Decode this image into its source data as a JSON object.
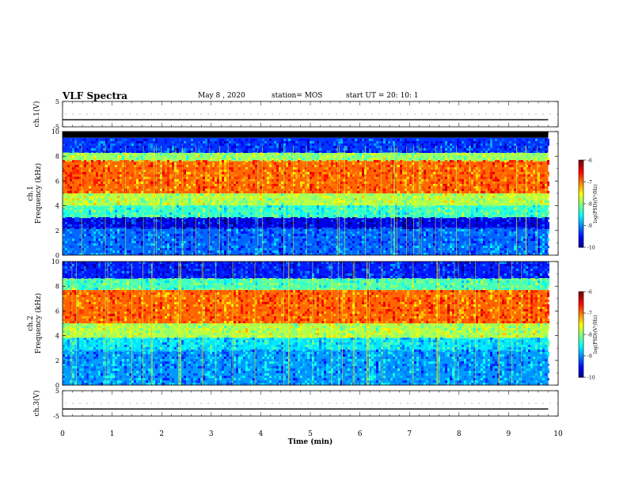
{
  "header": {
    "title": "VLF Spectra",
    "date": "May 8 , 2020",
    "station": "station= MOS",
    "start_ut": "start UT = 20: 10: 1"
  },
  "chart_data": [
    {
      "type": "line",
      "panel": "ch1-waveform",
      "ylabel": "ch.1(V)",
      "ylim": [
        -5,
        5
      ],
      "yticks": [
        5,
        -5
      ],
      "xlim": [
        0,
        10
      ],
      "series": [
        {
          "x": [
            0,
            9.8
          ],
          "y": [
            -2.2,
            -2.2
          ]
        }
      ]
    },
    {
      "type": "heatmap",
      "panel": "ch1-spectrogram",
      "ylabel": "ch.1\nFrequency (kHz)",
      "xlim": [
        0,
        10
      ],
      "ylim": [
        0,
        10
      ],
      "yticks": [
        0,
        2,
        4,
        6,
        8,
        10
      ],
      "data_x_extent": [
        0,
        9.8
      ],
      "colorbar": {
        "label": "log(PSD)(V²/Hz)",
        "range": [
          -10,
          -6
        ],
        "ticks": [
          -6,
          -7,
          -8,
          -9,
          -10
        ]
      },
      "bands": [
        {
          "f_from": 9.5,
          "f_to": 10,
          "level": -10.5
        },
        {
          "f_from": 8.3,
          "f_to": 9.5,
          "level": -9.3
        },
        {
          "f_from": 7.6,
          "f_to": 8.3,
          "level": -7.9
        },
        {
          "f_from": 5.0,
          "f_to": 7.6,
          "level": -6.9
        },
        {
          "f_from": 4.0,
          "f_to": 5.0,
          "level": -7.8
        },
        {
          "f_from": 3.0,
          "f_to": 4.0,
          "level": -8.3
        },
        {
          "f_from": 2.2,
          "f_to": 3.0,
          "level": -9.6
        },
        {
          "f_from": 0,
          "f_to": 2.2,
          "level": -9.1
        }
      ]
    },
    {
      "type": "heatmap",
      "panel": "ch2-spectrogram",
      "ylabel": "ch.2\nFrequency (kHz)",
      "xlim": [
        0,
        10
      ],
      "ylim": [
        0,
        10
      ],
      "yticks": [
        0,
        2,
        4,
        6,
        8,
        10
      ],
      "data_x_extent": [
        0,
        9.8
      ],
      "colorbar": {
        "label": "log(PSD)(V²/Hz)",
        "range": [
          -10,
          -6
        ],
        "ticks": [
          -6,
          -7,
          -8,
          -9,
          -10
        ]
      },
      "bands": [
        {
          "f_from": 8.6,
          "f_to": 10,
          "level": -9.4
        },
        {
          "f_from": 7.7,
          "f_to": 8.6,
          "level": -8.2
        },
        {
          "f_from": 5.0,
          "f_to": 7.7,
          "level": -6.9
        },
        {
          "f_from": 3.8,
          "f_to": 5.0,
          "level": -7.8
        },
        {
          "f_from": 2.8,
          "f_to": 3.8,
          "level": -8.6
        },
        {
          "f_from": 0,
          "f_to": 2.8,
          "level": -8.9
        }
      ]
    },
    {
      "type": "line",
      "panel": "ch3-waveform",
      "ylabel": "ch.3(V)",
      "ylim": [
        -5,
        5
      ],
      "yticks": [
        5,
        -5
      ],
      "xlim": [
        0,
        10
      ],
      "xlabel": "Time (min)",
      "xticks": [
        0,
        1,
        2,
        3,
        4,
        5,
        6,
        7,
        8,
        9,
        10
      ],
      "series": [
        {
          "x": [
            0,
            9.8
          ],
          "y": [
            -2.2,
            -2.2
          ]
        }
      ]
    }
  ]
}
